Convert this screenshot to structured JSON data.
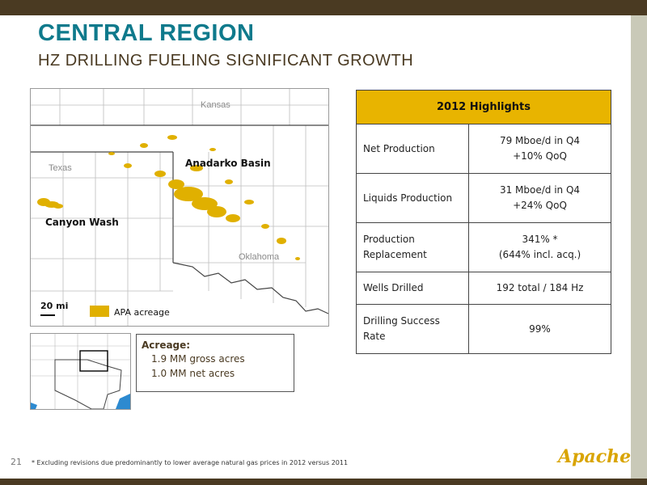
{
  "header": {
    "title": "CENTRAL REGION",
    "subtitle": "HZ DRILLING FUELING SIGNIFICANT GROWTH"
  },
  "map": {
    "state_labels": {
      "kansas": "Kansas",
      "texas": "Texas",
      "oklahoma": "Oklahoma"
    },
    "basins": {
      "anadarko": "Anadarko Basin",
      "canyon_wash": "Canyon Wash"
    },
    "scale": "20 mi",
    "legend_label": "APA acreage",
    "acreage_color": "#e0b000"
  },
  "acreage": {
    "heading": "Acreage:",
    "gross": "1.9 MM gross acres",
    "net": "1.0 MM net acres"
  },
  "highlights": {
    "title": "2012 Highlights",
    "rows": [
      {
        "label": "Net Production",
        "value_line1": "79 Mboe/d in Q4",
        "value_line2": "+10% QoQ"
      },
      {
        "label": "Liquids Production",
        "value_line1": "31 Mboe/d in Q4",
        "value_line2": "+24% QoQ"
      },
      {
        "label": "Production Replacement",
        "value_line1": "341% *",
        "value_line2": "(644% incl. acq.)"
      },
      {
        "label": "Wells Drilled",
        "value_line1": "192 total / 184 Hz",
        "value_line2": ""
      },
      {
        "label": "Drilling Success Rate",
        "value_line1": "99%",
        "value_line2": ""
      }
    ]
  },
  "footer": {
    "page_number": "21",
    "footnote": "* Excluding revisions due predominantly to lower average natural gas prices in 2012 versus 2011",
    "logo_text": "Apache"
  },
  "colors": {
    "title": "#0f7a8c",
    "brown": "#4a3a22",
    "gold": "#e8b400"
  }
}
